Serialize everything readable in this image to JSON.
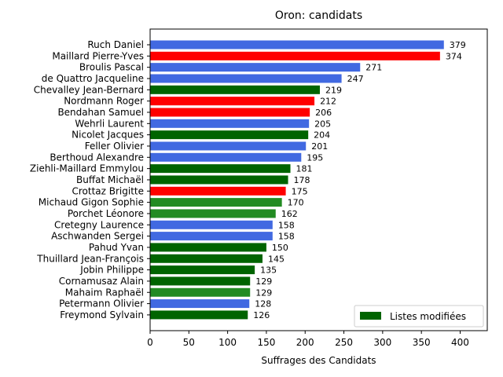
{
  "chart_data": {
    "type": "bar",
    "orientation": "horizontal",
    "title": "Oron: candidats",
    "xlabel": "Suffrages des Candidats",
    "ylabel": "",
    "xlim": [
      0,
      435
    ],
    "xticks": [
      0,
      50,
      100,
      150,
      200,
      250,
      300,
      350,
      400
    ],
    "grid": false,
    "legend": {
      "placement": "lower-right",
      "entries": [
        {
          "label": "Listes modifiées",
          "color": "#006400"
        }
      ]
    },
    "bars": [
      {
        "name": "Ruch Daniel",
        "value": 379,
        "color": "#4169e1"
      },
      {
        "name": "Maillard Pierre-Yves",
        "value": 374,
        "color": "#ff0000"
      },
      {
        "name": "Broulis Pascal",
        "value": 271,
        "color": "#4169e1"
      },
      {
        "name": "de Quattro Jacqueline",
        "value": 247,
        "color": "#4169e1"
      },
      {
        "name": "Chevalley Jean-Bernard",
        "value": 219,
        "color": "#006400"
      },
      {
        "name": "Nordmann Roger",
        "value": 212,
        "color": "#ff0000"
      },
      {
        "name": "Bendahan Samuel",
        "value": 206,
        "color": "#ff0000"
      },
      {
        "name": "Wehrli Laurent",
        "value": 205,
        "color": "#4169e1"
      },
      {
        "name": "Nicolet Jacques",
        "value": 204,
        "color": "#006400"
      },
      {
        "name": "Feller Olivier",
        "value": 201,
        "color": "#4169e1"
      },
      {
        "name": "Berthoud Alexandre",
        "value": 195,
        "color": "#4169e1"
      },
      {
        "name": "Ziehli-Maillard Emmylou",
        "value": 181,
        "color": "#006400"
      },
      {
        "name": "Buffat Michaël",
        "value": 178,
        "color": "#006400"
      },
      {
        "name": "Crottaz Brigitte",
        "value": 175,
        "color": "#ff0000"
      },
      {
        "name": "Michaud Gigon Sophie",
        "value": 170,
        "color": "#228b22"
      },
      {
        "name": "Porchet Léonore",
        "value": 162,
        "color": "#228b22"
      },
      {
        "name": "Cretegny Laurence",
        "value": 158,
        "color": "#4169e1"
      },
      {
        "name": "Aschwanden Sergei",
        "value": 158,
        "color": "#4169e1"
      },
      {
        "name": "Pahud Yvan",
        "value": 150,
        "color": "#006400"
      },
      {
        "name": "Thuillard Jean-François",
        "value": 145,
        "color": "#006400"
      },
      {
        "name": "Jobin Philippe",
        "value": 135,
        "color": "#006400"
      },
      {
        "name": "Cornamusaz Alain",
        "value": 129,
        "color": "#006400"
      },
      {
        "name": "Mahaim Raphaël",
        "value": 129,
        "color": "#228b22"
      },
      {
        "name": "Petermann Olivier",
        "value": 128,
        "color": "#4169e1"
      },
      {
        "name": "Freymond Sylvain",
        "value": 126,
        "color": "#006400"
      }
    ]
  }
}
